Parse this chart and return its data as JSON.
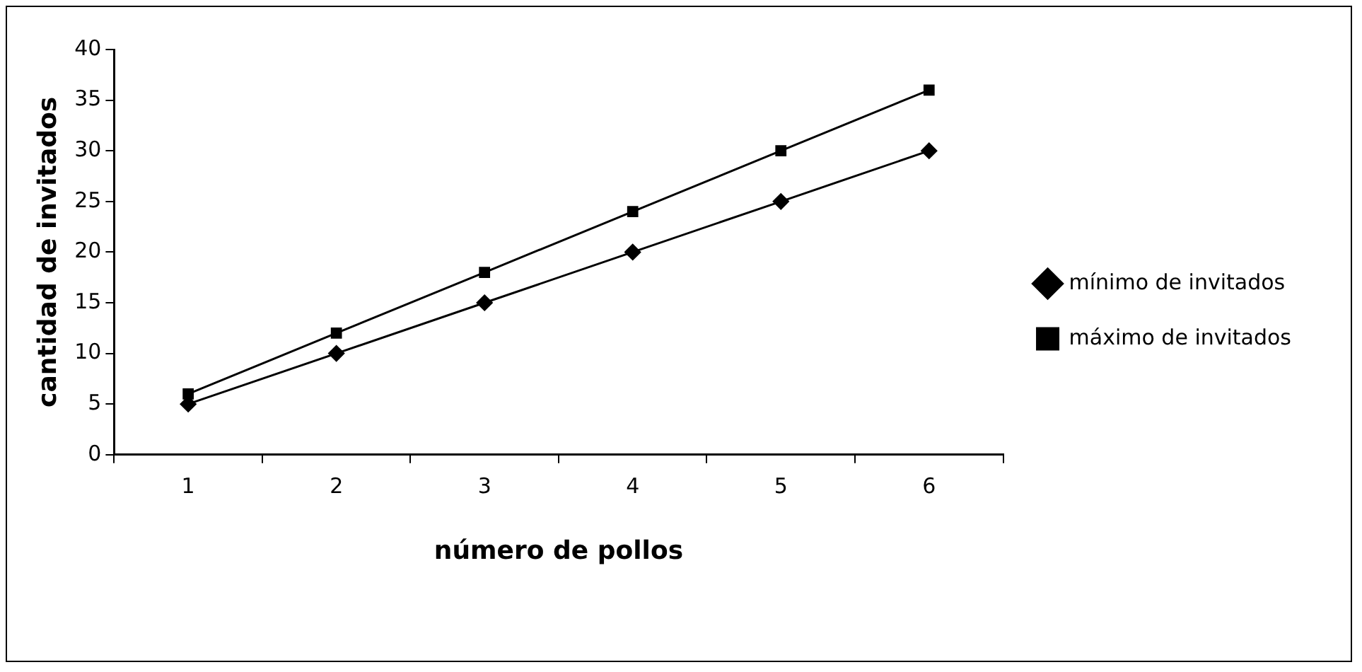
{
  "chart_data": {
    "type": "line",
    "xlabel": "número de pollos",
    "ylabel": "cantidad de invitados",
    "categories": [
      "1",
      "2",
      "3",
      "4",
      "5",
      "6"
    ],
    "series": [
      {
        "name": "mínimo de invitados",
        "color": "#000000",
        "marker": "diamond",
        "values": [
          5,
          10,
          15,
          20,
          25,
          30
        ]
      },
      {
        "name": "máximo de invitados",
        "color": "#000000",
        "marker": "square",
        "values": [
          6,
          12,
          18,
          24,
          30,
          36
        ]
      }
    ],
    "ylim": [
      0,
      40
    ],
    "yticks": [
      0,
      5,
      10,
      15,
      20,
      25,
      30,
      35,
      40
    ],
    "grid": false,
    "legend": "right",
    "line_style": "solid"
  }
}
